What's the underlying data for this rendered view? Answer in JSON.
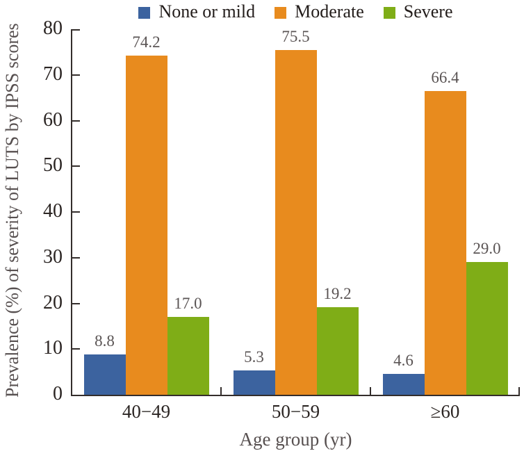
{
  "chart_data": {
    "type": "bar",
    "categories": [
      "40−49",
      "50−59",
      "≥60"
    ],
    "series": [
      {
        "name": "None or mild",
        "color": "#3c639f",
        "values": [
          8.8,
          5.3,
          4.6
        ]
      },
      {
        "name": "Moderate",
        "color": "#e88b1e",
        "values": [
          74.2,
          75.5,
          66.4
        ]
      },
      {
        "name": "Severe",
        "color": "#7fad17",
        "values": [
          17.0,
          19.2,
          29.0
        ]
      }
    ],
    "bar_value_labels": [
      [
        "8.8",
        "5.3",
        "4.6"
      ],
      [
        "74.2",
        "75.5",
        "66.4"
      ],
      [
        "17.0",
        "19.2",
        "29.0"
      ]
    ],
    "xlabel": "Age group (yr)",
    "ylabel": "Prevalence (%) of severity of LUTS by IPSS scores",
    "ylim": [
      0,
      80
    ],
    "yticks": [
      "0",
      "10",
      "20",
      "30",
      "40",
      "50",
      "60",
      "70",
      "80"
    ],
    "legend_position": "top",
    "grid": false,
    "value_labels_shown": true
  },
  "style": {
    "axis_color": "#332d2b",
    "tick_label_color": "#2b2523",
    "category_label_color": "#2b2523",
    "value_label_color": "#5a5454",
    "axis_title_color": "#575050",
    "legend_text_color": "#221c1a",
    "background": "#ffffff"
  }
}
